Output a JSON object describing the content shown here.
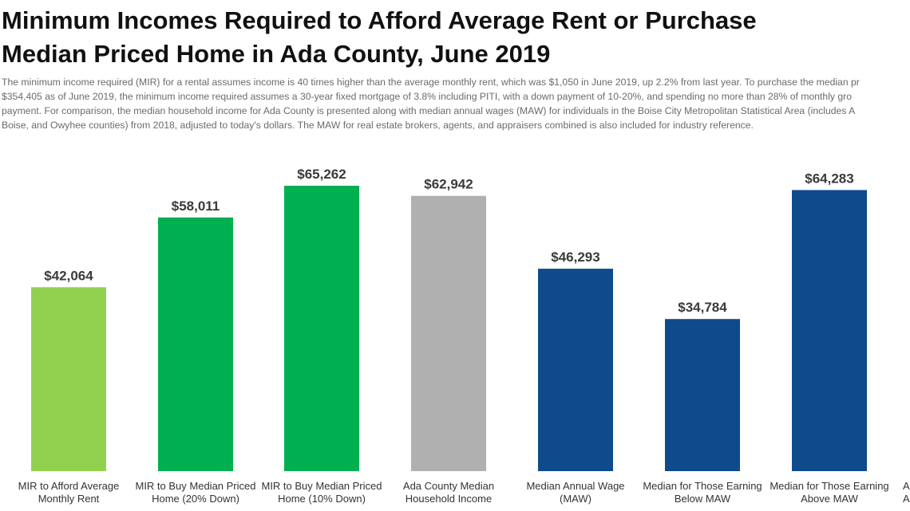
{
  "header": {
    "title_lines": [
      "Minimum Incomes Required to Afford Average Rent or Purchase",
      "Median Priced Home in Ada County, June 2019"
    ],
    "description_lines": [
      "The minimum income required (MIR) for a rental assumes income is 40 times higher than the average monthly rent, which was $1,050 in June 2019, up 2.2% from last year. To purchase the median pr",
      "$354,405 as of June 2019, the minimum income required assumes a 30-year fixed mortgage of 3.8% including PITI, with a down payment of 10-20%, and spending no more than 28% of monthly gro",
      "payment. For comparison, the median household income for Ada County is presented along with median annual wages (MAW) for individuals in the Boise City Metropolitan Statistical Area (includes A",
      "Boise, and Owyhee counties) from 2018, adjusted to today's dollars. The MAW for real estate brokers, agents, and appraisers combined is also included for industry reference."
    ]
  },
  "chart_data": {
    "type": "bar",
    "categories": [
      [
        "MIR to Afford Average",
        "Monthly Rent"
      ],
      [
        "MIR to Buy Median Priced",
        "Home (20% Down)"
      ],
      [
        "MIR to Buy Median Priced",
        "Home (10% Down)"
      ],
      [
        "Ada County Median",
        "Household Income"
      ],
      [
        "Median Annual Wage",
        "(MAW)"
      ],
      [
        "Median for Those Earning",
        "Below MAW"
      ],
      [
        "Median for Those Earning",
        "Above MAW"
      ]
    ],
    "values": [
      42064,
      58011,
      65262,
      62942,
      46293,
      34784,
      64283
    ],
    "value_labels": [
      "$42,064",
      "$58,011",
      "$65,262",
      "$62,942",
      "$46,293",
      "$34,784",
      "$64,283"
    ],
    "colors": [
      "#92d050",
      "#00b050",
      "#00b050",
      "#b0b0b0",
      "#0f4a8a",
      "#0f4a8a",
      "#0f4a8a"
    ],
    "ylim": [
      0,
      80000
    ],
    "grid": false,
    "legend": "none",
    "clipped_right_label": "A"
  }
}
